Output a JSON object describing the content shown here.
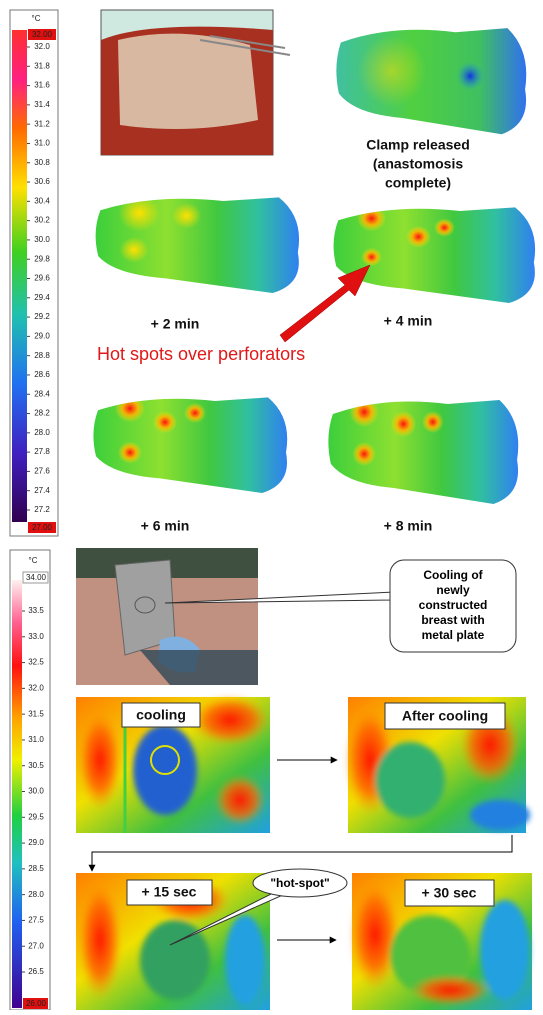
{
  "top_scale": {
    "unit": "°C",
    "max": "32.00",
    "labels": [
      "32.0",
      "31.8",
      "31.6",
      "31.4",
      "31.2",
      "31.0",
      "30.8",
      "30.6",
      "30.4",
      "30.2",
      "30.0",
      "29.8",
      "29.6",
      "29.4",
      "29.2",
      "29.0",
      "28.8",
      "28.6",
      "28.4",
      "28.2",
      "28.0",
      "27.8",
      "27.6",
      "27.4",
      "27.2"
    ],
    "min": "27.00"
  },
  "top_panel": {
    "clamp_caption": [
      "Clamp released",
      "(anastomosis",
      "complete)"
    ],
    "time_labels": [
      "+ 2 min",
      "+ 4 min",
      "+ 6 min",
      "+ 8 min"
    ],
    "annotation": "Hot spots over perforators"
  },
  "bottom_scale": {
    "unit": "°C",
    "max": "34.00",
    "labels": [
      "33.5",
      "33.0",
      "32.5",
      "32.0",
      "31.5",
      "31.0",
      "30.5",
      "30.0",
      "29.5",
      "29.0",
      "28.5",
      "28.0",
      "27.5",
      "27.0",
      "26.5"
    ],
    "min": "26.00"
  },
  "bottom_panel": {
    "callout": [
      "Cooling of",
      "newly",
      "constructed",
      "breast with",
      "metal plate"
    ],
    "panel_labels": [
      "cooling",
      "After cooling",
      "+ 15 sec",
      "+ 30 sec"
    ],
    "hot_spot": "\"hot-spot\""
  }
}
